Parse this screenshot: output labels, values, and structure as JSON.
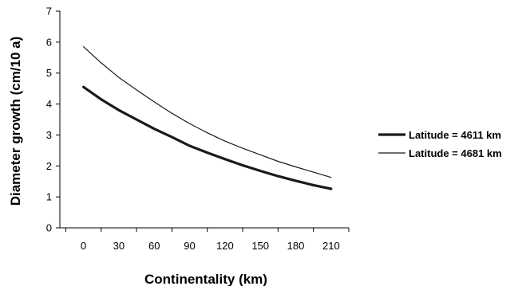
{
  "chart_data": {
    "type": "line",
    "title": "",
    "xlabel": "Continentality (km)",
    "ylabel": "Diameter growth (cm/10 a)",
    "x": [
      0,
      15,
      30,
      45,
      60,
      75,
      90,
      105,
      120,
      135,
      150,
      165,
      180,
      195,
      210
    ],
    "x_ticks": [
      0,
      30,
      60,
      90,
      120,
      150,
      180,
      210
    ],
    "xlim": [
      -20,
      225
    ],
    "ylim": [
      0,
      7
    ],
    "y_ticks": [
      0,
      1,
      2,
      3,
      4,
      5,
      6,
      7
    ],
    "grid": false,
    "legend_position": "right",
    "series": [
      {
        "name": "Latitude = 4611 km",
        "color": "#1a1a1a",
        "line": "thick",
        "values": [
          4.55,
          4.15,
          3.8,
          3.5,
          3.2,
          2.93,
          2.65,
          2.43,
          2.22,
          2.02,
          1.84,
          1.67,
          1.52,
          1.38,
          1.26
        ]
      },
      {
        "name": "Latitude = 4681 km",
        "color": "#1a1a1a",
        "line": "thin",
        "values": [
          5.85,
          5.33,
          4.86,
          4.46,
          4.07,
          3.7,
          3.37,
          3.07,
          2.8,
          2.57,
          2.36,
          2.15,
          1.97,
          1.8,
          1.63
        ]
      }
    ]
  }
}
